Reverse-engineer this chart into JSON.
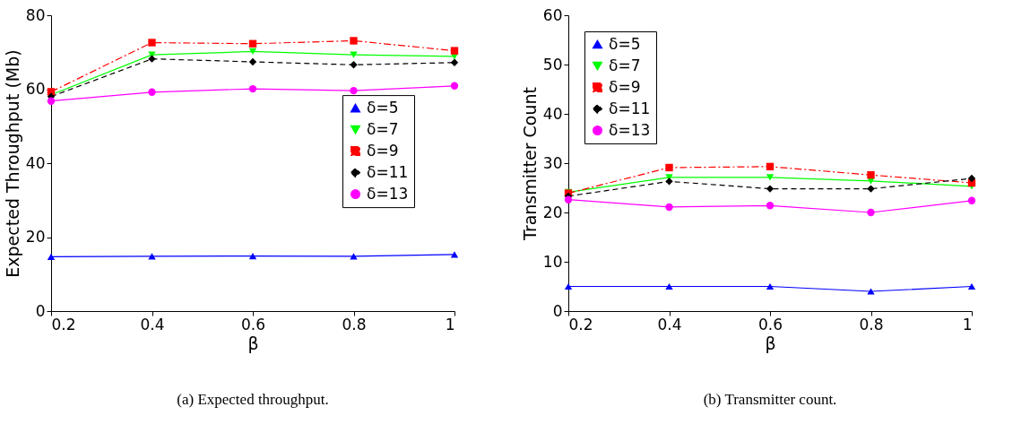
{
  "chart_data": [
    {
      "type": "line",
      "xlabel": "β",
      "ylabel": "Expected Throughput (Mb)",
      "x": [
        0.2,
        0.4,
        0.6,
        0.8,
        1
      ],
      "xlim": [
        0.2,
        1
      ],
      "xticks": [
        0.2,
        0.4,
        0.6,
        0.8,
        1
      ],
      "ylim": [
        0,
        80
      ],
      "yticks": [
        0,
        20,
        40,
        60,
        80
      ],
      "grid": false,
      "legend": "right",
      "annotations": [
        "(a) Expected throughput."
      ],
      "series": [
        {
          "name": "δ=5",
          "color": "#0000ff",
          "marker": "triangle",
          "line_style": "solid",
          "values": [
            14.7,
            14.8,
            14.9,
            14.8,
            15.3
          ]
        },
        {
          "name": "δ=7",
          "color": "#00ff00",
          "marker": "triangle-down",
          "line_style": "solid",
          "values": [
            58.5,
            69.3,
            70.2,
            69.3,
            68.9
          ]
        },
        {
          "name": "δ=9",
          "color": "#ff0000",
          "marker": "square",
          "line_style": "dashdot",
          "values": [
            59.3,
            72.6,
            72.3,
            73.1,
            70.4
          ]
        },
        {
          "name": "δ=11",
          "color": "#000000",
          "marker": "diamond",
          "line_style": "dashed",
          "values": [
            58.0,
            68.2,
            67.4,
            66.6,
            67.2
          ]
        },
        {
          "name": "δ=13",
          "color": "#ff00ff",
          "marker": "circle",
          "line_style": "solid",
          "values": [
            56.8,
            59.2,
            60.1,
            59.6,
            60.9
          ]
        }
      ]
    },
    {
      "type": "line",
      "xlabel": "β",
      "ylabel": "Transmitter Count",
      "x": [
        0.2,
        0.4,
        0.6,
        0.8,
        1
      ],
      "xlim": [
        0.2,
        1
      ],
      "xticks": [
        0.2,
        0.4,
        0.6,
        0.8,
        1
      ],
      "ylim": [
        0,
        60
      ],
      "yticks": [
        0,
        10,
        20,
        30,
        40,
        50,
        60
      ],
      "grid": false,
      "legend": "top left",
      "annotations": [
        "(b) Transmitter count."
      ],
      "series": [
        {
          "name": "δ=5",
          "color": "#0000ff",
          "marker": "triangle",
          "line_style": "solid",
          "values": [
            5,
            5,
            5,
            4,
            5
          ]
        },
        {
          "name": "δ=7",
          "color": "#00ff00",
          "marker": "triangle-down",
          "line_style": "solid",
          "values": [
            24.1,
            27.1,
            27.1,
            26.4,
            25.3
          ]
        },
        {
          "name": "δ=9",
          "color": "#ff0000",
          "marker": "square",
          "line_style": "dashdot",
          "values": [
            23.9,
            29.1,
            29.3,
            27.6,
            26.0
          ]
        },
        {
          "name": "δ=11",
          "color": "#000000",
          "marker": "diamond",
          "line_style": "dashed",
          "values": [
            23.3,
            26.3,
            24.8,
            24.8,
            26.9
          ]
        },
        {
          "name": "δ=13",
          "color": "#ff00ff",
          "marker": "circle",
          "line_style": "solid",
          "values": [
            22.6,
            21.1,
            21.4,
            20.0,
            22.4
          ]
        }
      ]
    }
  ]
}
